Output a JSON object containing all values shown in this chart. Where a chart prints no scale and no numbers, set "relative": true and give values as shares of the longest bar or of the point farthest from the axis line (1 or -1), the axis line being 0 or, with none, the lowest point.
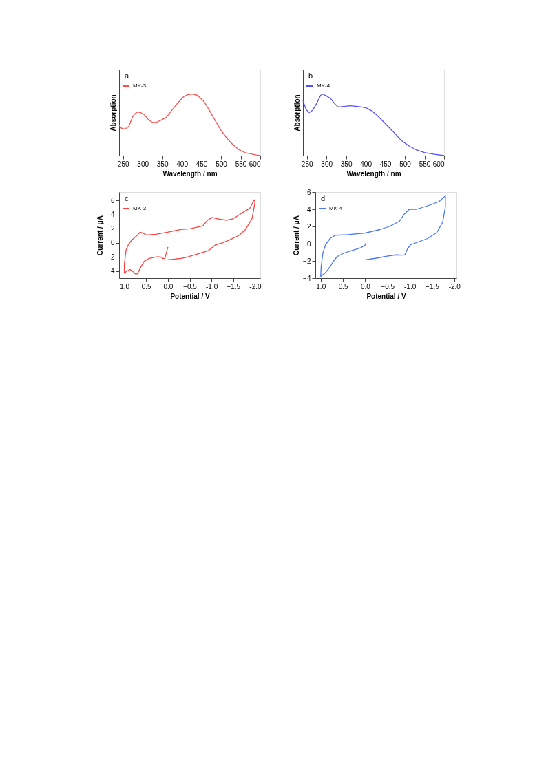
{
  "chart_data": [
    {
      "type": "line",
      "title": "a",
      "relative": true,
      "xlabel": "Wavelength / nm",
      "ylabel": "Absorption",
      "legend": "top left",
      "xlim": [
        240,
        600
      ],
      "xticks": [
        250,
        300,
        350,
        400,
        450,
        500,
        550,
        600
      ],
      "series": [
        {
          "name": "MK-3",
          "color": "#ff5050",
          "x": [
            240,
            245,
            255,
            265,
            275,
            280,
            287,
            295,
            305,
            315,
            325,
            335,
            345,
            360,
            375,
            390,
            405,
            415,
            427,
            440,
            455,
            470,
            485,
            500,
            515,
            530,
            545,
            560,
            575,
            590,
            600
          ],
          "values": [
            0.5,
            0.45,
            0.43,
            0.48,
            0.64,
            0.68,
            0.71,
            0.7,
            0.66,
            0.58,
            0.54,
            0.54,
            0.57,
            0.62,
            0.74,
            0.86,
            0.96,
            0.99,
            1.0,
            0.98,
            0.89,
            0.74,
            0.57,
            0.41,
            0.28,
            0.18,
            0.1,
            0.05,
            0.03,
            0.01,
            0
          ]
        }
      ]
    },
    {
      "type": "line",
      "title": "b",
      "relative": true,
      "xlabel": "Wavelength / nm",
      "ylabel": "Absorption",
      "legend": "top left",
      "xlim": [
        240,
        600
      ],
      "xticks": [
        250,
        300,
        350,
        400,
        450,
        500,
        550,
        600
      ],
      "series": [
        {
          "name": "MK-4",
          "color": "#5050ff",
          "x": [
            240,
            248,
            256,
            265,
            275,
            285,
            290,
            300,
            310,
            320,
            330,
            345,
            360,
            380,
            400,
            415,
            430,
            450,
            470,
            490,
            510,
            530,
            550,
            575,
            600
          ],
          "values": [
            0.89,
            0.75,
            0.7,
            0.74,
            0.85,
            0.98,
            1.0,
            0.97,
            0.93,
            0.85,
            0.79,
            0.8,
            0.81,
            0.8,
            0.78,
            0.73,
            0.65,
            0.52,
            0.39,
            0.25,
            0.16,
            0.09,
            0.05,
            0.02,
            0
          ]
        }
      ]
    },
    {
      "type": "line",
      "title": "c",
      "xlabel": "Potential / V",
      "ylabel": "Current  / μA",
      "legend": "top left",
      "xlim": [
        1.12,
        -2.12
      ],
      "ylim": [
        -5,
        7.2
      ],
      "xticks": [
        {
          "value": 1,
          "label": "1.0"
        },
        0.5,
        {
          "value": 0,
          "label": "0.0"
        },
        -0.5,
        {
          "value": -1,
          "label": "-1.0"
        },
        -1.5,
        {
          "value": -2,
          "label": "-2.0"
        }
      ],
      "yticks": [
        -4,
        -2,
        0,
        2,
        4,
        6
      ],
      "series": [
        {
          "name": "MK-3",
          "color": "#ff4040",
          "x": [
            0.0,
            0.07,
            0.12,
            0.17,
            0.28,
            0.43,
            0.54,
            0.62,
            0.7,
            0.75,
            0.83,
            0.88,
            0.96,
            1.0,
            1.0,
            0.96,
            0.91,
            0.83,
            0.7,
            0.64,
            0.58,
            0.49,
            0.28,
            0.01,
            -0.3,
            -0.51,
            -0.8,
            -0.91,
            -1.01,
            -1.14,
            -1.35,
            -1.49,
            -1.62,
            -1.77,
            -1.88,
            -1.98,
            -2.0,
            -1.93,
            -1.77,
            -1.62,
            -1.41,
            -1.25,
            -1.09,
            -1.01,
            -0.93,
            -0.78,
            -0.51,
            -0.46,
            -0.3,
            0.0
          ],
          "values": [
            -0.6,
            -2.2,
            -2.2,
            -2.0,
            -2.0,
            -2.2,
            -2.6,
            -3.4,
            -4.4,
            -4.4,
            -3.9,
            -3.8,
            -4.1,
            -4.3,
            -3.0,
            -1.0,
            -0.3,
            0.4,
            1.1,
            1.5,
            1.4,
            1.1,
            1.2,
            1.5,
            1.9,
            2.0,
            2.4,
            3.2,
            3.6,
            3.4,
            3.2,
            3.4,
            3.9,
            4.5,
            4.9,
            6.1,
            5.8,
            3.4,
            1.8,
            1.0,
            0.4,
            0.0,
            -0.3,
            -0.7,
            -1.1,
            -1.4,
            -1.9,
            -2.0,
            -2.2,
            -2.4
          ]
        }
      ]
    },
    {
      "type": "line",
      "title": "d",
      "xlabel": "Potential / V",
      "ylabel": "Current  / μA",
      "legend": "top left",
      "xlim": [
        1.12,
        -2.05
      ],
      "ylim": [
        -4,
        6
      ],
      "xticks": [
        {
          "value": 1,
          "label": "1.0"
        },
        0.5,
        {
          "value": 0,
          "label": "0.0"
        },
        -0.5,
        {
          "value": -1,
          "label": "-1.0"
        },
        -1.5,
        {
          "value": -2,
          "label": "-2.0"
        }
      ],
      "yticks": [
        -4,
        -2,
        0,
        2,
        4,
        6
      ],
      "series": [
        {
          "name": "MK-4",
          "color": "#4a78f0",
          "x": [
            0.0,
            0.0,
            0.1,
            0.28,
            0.48,
            0.63,
            0.71,
            0.79,
            0.89,
            1.0,
            0.99,
            0.95,
            0.89,
            0.79,
            0.67,
            0.38,
            0.0,
            -0.33,
            -0.54,
            -0.77,
            -0.87,
            -0.99,
            -1.15,
            -1.28,
            -1.46,
            -1.66,
            -1.8,
            -1.8,
            -1.74,
            -1.61,
            -1.4,
            -1.15,
            -1.02,
            -0.95,
            -0.89,
            -0.84,
            -0.69,
            -0.49,
            -0.23,
            0.0
          ],
          "values": [
            0.05,
            -0.16,
            -0.47,
            -0.77,
            -1.1,
            -1.5,
            -2.0,
            -2.7,
            -3.35,
            -3.8,
            -2.7,
            -1.05,
            -0.12,
            0.6,
            0.98,
            1.05,
            1.24,
            1.64,
            2.0,
            2.6,
            3.4,
            4.0,
            4.0,
            4.2,
            4.5,
            4.9,
            5.55,
            4.3,
            2.5,
            1.3,
            0.6,
            0.12,
            -0.12,
            -0.6,
            -1.3,
            -1.33,
            -1.3,
            -1.45,
            -1.7,
            -1.87
          ]
        }
      ]
    }
  ]
}
